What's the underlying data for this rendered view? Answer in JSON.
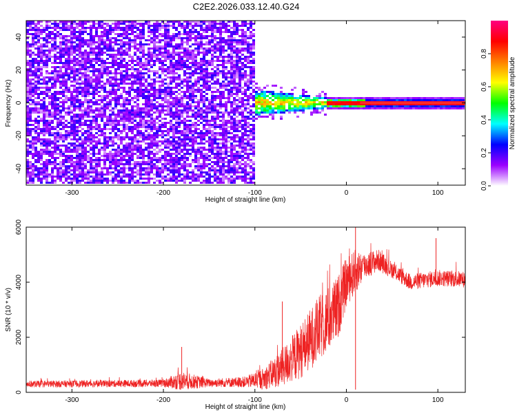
{
  "title": "C2E2.2026.033.12.40.G24",
  "colors": {
    "snr_line": "#ee2222",
    "spectrum_high_band": "#ff2a2a"
  },
  "chart_data": [
    {
      "type": "heatmap",
      "xlabel": "Height of straight line (km)",
      "ylabel": "Frequency (Hz)",
      "xlim": [
        -350,
        130
      ],
      "ylim": [
        -50,
        50
      ],
      "xticks": [
        -300,
        -200,
        -100,
        0,
        100
      ],
      "yticks": [
        -40,
        -20,
        0,
        20,
        40
      ],
      "colorbar": {
        "label": "Normalized spectral amplitude",
        "range": [
          0,
          1
        ],
        "ticks": [
          0.0,
          0.2,
          0.4,
          0.6,
          0.8
        ],
        "colors": [
          "#ffffff",
          "#9b00ff",
          "#0000ff",
          "#00ffff",
          "#00ff00",
          "#ffff00",
          "#ff8000",
          "#ff0000",
          "#ff0080"
        ]
      },
      "regions": [
        {
          "x": [
            -350,
            -100
          ],
          "freq": [
            -50,
            50
          ],
          "amplitude": 0.12,
          "pattern": "broadband noise"
        },
        {
          "x": [
            -100,
            -20
          ],
          "freq": [
            -8,
            8
          ],
          "amplitude": 0.45,
          "pattern": "narrowing band centered near 0 Hz"
        },
        {
          "x": [
            -20,
            130
          ],
          "freq": [
            -1,
            1
          ],
          "amplitude": 0.9,
          "pattern": "narrow line at 0 Hz"
        }
      ]
    },
    {
      "type": "line",
      "xlabel": "Height of straight line (km)",
      "ylabel": "SNR (10 * v/v)",
      "xlim": [
        -350,
        130
      ],
      "ylim": [
        0,
        6000
      ],
      "xticks": [
        -300,
        -200,
        -100,
        0,
        100
      ],
      "yticks": [
        0,
        2000,
        4000,
        6000
      ],
      "envelope": {
        "x": [
          -350,
          -250,
          -200,
          -180,
          -150,
          -110,
          -90,
          -70,
          -50,
          -30,
          -10,
          0,
          10,
          20,
          35,
          50,
          70,
          100,
          130
        ],
        "mean": [
          300,
          320,
          330,
          420,
          340,
          380,
          500,
          900,
          1500,
          2300,
          3000,
          4000,
          4400,
          4600,
          4800,
          4450,
          4000,
          4150,
          4100
        ],
        "spread": [
          120,
          130,
          140,
          350,
          150,
          200,
          400,
          700,
          1000,
          1200,
          1200,
          900,
          800,
          500,
          400,
          300,
          300,
          300,
          300
        ]
      },
      "spikes": [
        {
          "x": 10,
          "y": 6000
        },
        {
          "x": 10,
          "y": 100
        },
        {
          "x": 98,
          "y": 5600
        },
        {
          "x": -70,
          "y": 3300
        },
        {
          "x": -180,
          "y": 1650
        }
      ]
    }
  ]
}
